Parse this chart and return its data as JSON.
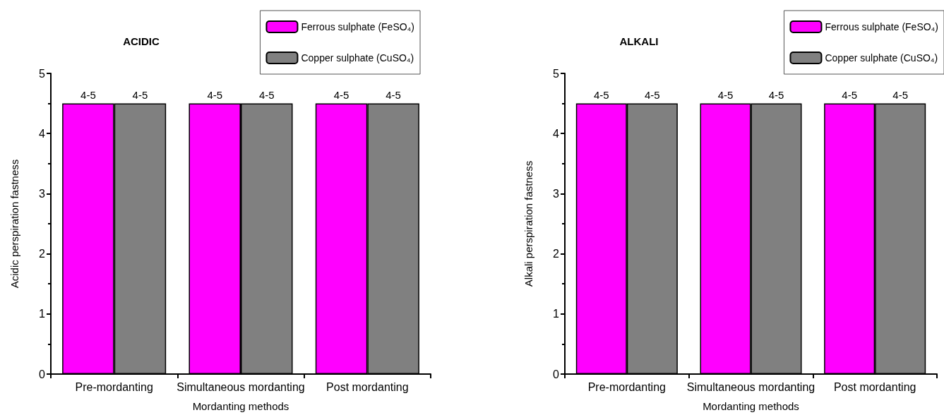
{
  "chart_data": [
    {
      "type": "bar",
      "title": "ACIDIC",
      "xlabel": "Mordanting methods",
      "ylabel": "Acidic perspiration fastness",
      "categories": [
        "Pre-mordanting",
        "Simultaneous mordanting",
        "Post mordanting"
      ],
      "series": [
        {
          "name": "Ferrous sulphate (FeSO₄)",
          "color": "#ff00ff",
          "values": [
            4.5,
            4.5,
            4.5
          ],
          "value_labels": [
            "4-5",
            "4-5",
            "4-5"
          ]
        },
        {
          "name": "Copper sulphate (CuSO₄)",
          "color": "#808080",
          "values": [
            4.5,
            4.5,
            4.5
          ],
          "value_labels": [
            "4-5",
            "4-5",
            "4-5"
          ]
        }
      ],
      "ylim": [
        0,
        5
      ],
      "yticks": [
        0,
        1,
        2,
        3,
        4,
        5
      ],
      "grid": false,
      "legend": "top right"
    },
    {
      "type": "bar",
      "title": "ALKALI",
      "xlabel": "Mordanting methods",
      "ylabel": "Alkali perspiration fastness",
      "categories": [
        "Pre-mordanting",
        "Simultaneous mordanting",
        "Post mordanting"
      ],
      "series": [
        {
          "name": "Ferrous sulphate (FeSO₄)",
          "color": "#ff00ff",
          "values": [
            4.5,
            4.5,
            4.5
          ],
          "value_labels": [
            "4-5",
            "4-5",
            "4-5"
          ]
        },
        {
          "name": "Copper sulphate (CuSO₄)",
          "color": "#808080",
          "values": [
            4.5,
            4.5,
            4.5
          ],
          "value_labels": [
            "4-5",
            "4-5",
            "4-5"
          ]
        }
      ],
      "ylim": [
        0,
        5
      ],
      "yticks": [
        0,
        1,
        2,
        3,
        4,
        5
      ],
      "grid": false,
      "legend": "top right"
    }
  ]
}
